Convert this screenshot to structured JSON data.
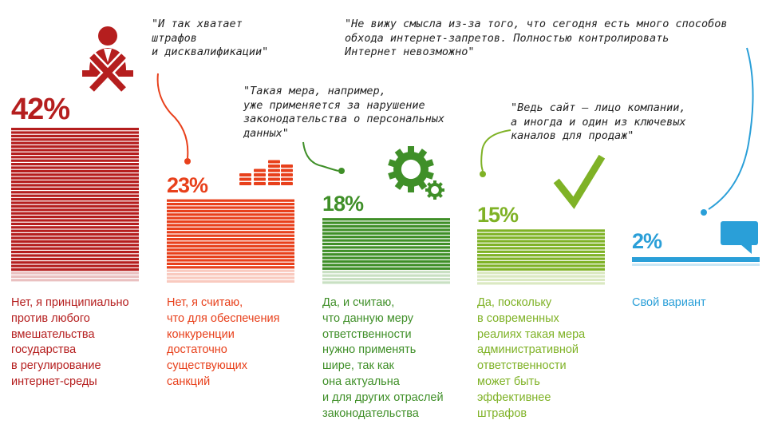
{
  "chart_data": {
    "type": "bar",
    "title": "",
    "unit": "%",
    "ylim": [
      0,
      42
    ],
    "categories": [
      "Нет, я принципиально против любого вмешательства государства в регулирование интернет-среды",
      "Нет, я считаю, что для обеспечения конкуренции достаточно существующих санкций",
      "Да, и считаю, что данную меру ответственности нужно применять шире, так как она актуальна и для других отраслей законодательства",
      "Да, поскольку в современных реалиях такая мера административной ответственности может быть эффективнее штрафов",
      "Свой вариант"
    ],
    "values": [
      42,
      23,
      18,
      15,
      2
    ],
    "labels": [
      "42%",
      "23%",
      "18%",
      "15%",
      "2%"
    ],
    "colors": [
      "#b51e1e",
      "#e8401b",
      "#3f8f28",
      "#7fb226",
      "#2a9fd8"
    ],
    "caption_lines": [
      [
        "Нет, я принципиально",
        "против любого",
        "вмешательства",
        "государства",
        "в регулирование",
        "интернет-среды"
      ],
      [
        "Нет, я считаю,",
        "что для обеспечения",
        "конкуренции",
        "достаточно",
        "существующих",
        "санкций"
      ],
      [
        "Да, и считаю,",
        "что данную меру",
        "ответственности",
        "нужно применять",
        "шире, так как",
        "она актуальна",
        "и для других отраслей",
        "законодательства"
      ],
      [
        "Да, поскольку",
        "в современных",
        "реалиях такая мера",
        "административной",
        "ответственности",
        "может быть",
        "эффективнее",
        "штрафов"
      ],
      [
        "Свой вариант"
      ]
    ],
    "icons": [
      "businessman-crossed-icon",
      "coin-stacks-icon",
      "gears-icon",
      "checkmark-icon",
      "speech-bubble-icon"
    ]
  },
  "quotes": [
    [
      "\"И так хватает",
      "штрафов",
      "и дисквалификации\""
    ],
    [
      "\"Такая мера, например,",
      "уже применяется за нарушение",
      "законодательства о персональных",
      "данных\""
    ],
    [
      "\"Ведь сайт – лицо компании,",
      "а иногда и один из ключевых",
      "каналов для продаж\""
    ],
    [
      "\"Не вижу смысла из-за того, что сегодня есть много способов",
      "обхода интернет-запретов. Полностью контролировать",
      "Интернет невозможно\""
    ]
  ]
}
